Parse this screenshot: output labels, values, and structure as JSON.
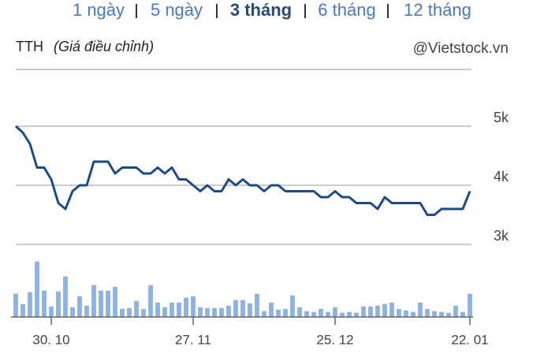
{
  "nav": {
    "items": [
      "1 ngày",
      "5 ngày",
      "3 tháng",
      "6 tháng",
      "12 tháng"
    ],
    "selected": 2
  },
  "chart_data": {
    "type": "line",
    "title": "TTH",
    "subtitle": "(Giá điều chỉnh)",
    "source": "@Vietstock.vn",
    "categories": [
      null,
      null,
      null,
      null,
      null,
      "30. 10",
      null,
      null,
      null,
      null,
      null,
      null,
      null,
      null,
      null,
      null,
      null,
      null,
      null,
      null,
      null,
      null,
      null,
      null,
      null,
      "27. 11",
      null,
      null,
      null,
      null,
      null,
      null,
      null,
      null,
      null,
      null,
      null,
      null,
      null,
      null,
      null,
      null,
      null,
      null,
      null,
      "25. 12",
      null,
      null,
      null,
      null,
      null,
      null,
      null,
      null,
      null,
      null,
      null,
      null,
      null,
      null,
      null,
      null,
      null,
      null,
      "22. 01"
    ],
    "values": [
      5000,
      4890,
      4700,
      4300,
      4300,
      4100,
      3700,
      3600,
      3900,
      4000,
      4000,
      4400,
      4400,
      4400,
      4200,
      4300,
      4300,
      4300,
      4200,
      4200,
      4300,
      4200,
      4300,
      4100,
      4100,
      4000,
      3900,
      4000,
      3900,
      3900,
      4100,
      4000,
      4100,
      4000,
      4000,
      3900,
      4000,
      4000,
      3900,
      3900,
      3900,
      3900,
      3900,
      3800,
      3800,
      3900,
      3800,
      3800,
      3700,
      3700,
      3700,
      3600,
      3800,
      3700,
      3700,
      3700,
      3700,
      3700,
      3500,
      3500,
      3600,
      3600,
      3600,
      3600,
      3900
    ],
    "volume": [
      29,
      16,
      31,
      70,
      33,
      13,
      32,
      51,
      12,
      26,
      14,
      40,
      33,
      33,
      38,
      10,
      11,
      20,
      10,
      40,
      18,
      12,
      18,
      18,
      24,
      26,
      12,
      11,
      11,
      11,
      14,
      21,
      21,
      17,
      29,
      7,
      18,
      9,
      10,
      27,
      12,
      7,
      6,
      10,
      6,
      12,
      5,
      6,
      5,
      13,
      13,
      14,
      16,
      18,
      10,
      8,
      6,
      18,
      10,
      7,
      6,
      5,
      14,
      6,
      29
    ],
    "color": "#1f4a82",
    "volume_color": "#8db3e2",
    "ylim": [
      3000,
      5960
    ],
    "yticks": [
      {
        "value": 3000,
        "label": "3k"
      },
      {
        "value": 4000,
        "label": "4k"
      },
      {
        "value": 5000,
        "label": "5k"
      }
    ],
    "volume_ylim": [
      0,
      92
    ],
    "grid": true
  }
}
